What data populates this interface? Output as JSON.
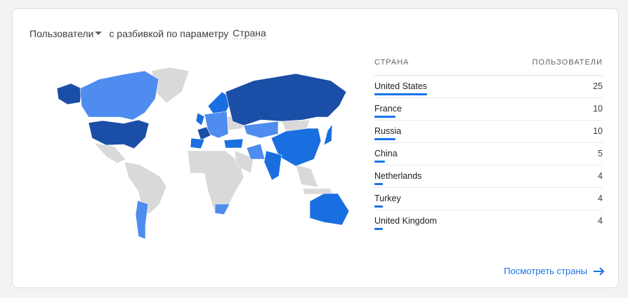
{
  "header": {
    "metric": "Пользователи",
    "breakdown_text": "с разбивкой по параметру",
    "dimension": "Страна"
  },
  "table": {
    "columns": [
      "СТРАНА",
      "ПОЛЬЗОВАТЕЛИ"
    ],
    "rows": [
      {
        "country": "United States",
        "users": "25"
      },
      {
        "country": "France",
        "users": "10"
      },
      {
        "country": "Russia",
        "users": "10"
      },
      {
        "country": "China",
        "users": "5"
      },
      {
        "country": "Netherlands",
        "users": "4"
      },
      {
        "country": "Turkey",
        "users": "4"
      },
      {
        "country": "United Kingdom",
        "users": "4"
      }
    ]
  },
  "link": {
    "label": "Посмотреть страны",
    "icon": "arrow-right-icon"
  },
  "colors": {
    "accent": "#1a73e8",
    "dark": "#1b4ea6",
    "medium": "#1a6fe0",
    "light": "#4e8cef",
    "none": "#d9d9d9"
  }
}
